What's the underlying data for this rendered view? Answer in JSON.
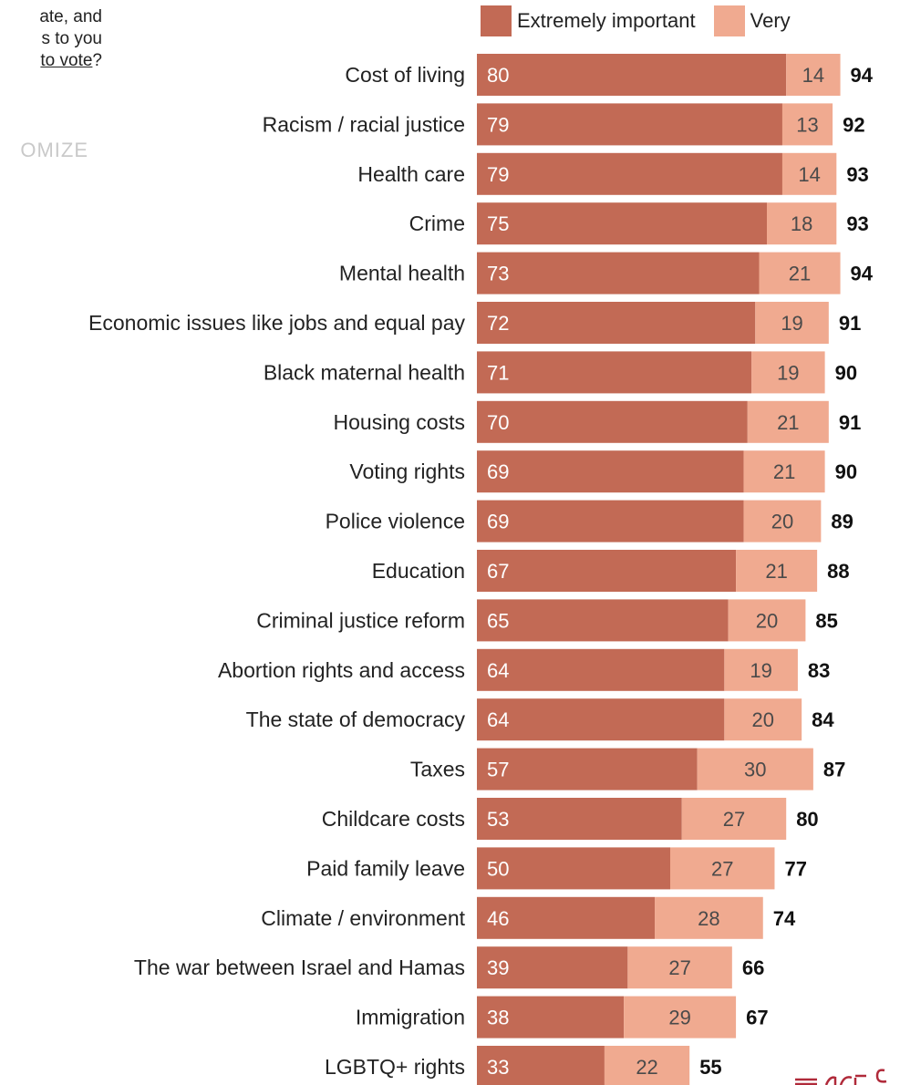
{
  "intro": {
    "line1": "ate, and",
    "line2": "s to you",
    "line3_link": "to vote",
    "line3_end": "?"
  },
  "customize_label": "OMIZE",
  "colors": {
    "extremely": "#c26a55",
    "very": "#f0aa90",
    "label_on_dark": "#ffffff",
    "label_on_light": "#4a4a4a"
  },
  "legend": {
    "extremely_label": "Extremely important",
    "very_label": "Very"
  },
  "chart_data": {
    "type": "bar",
    "orientation": "horizontal",
    "stacked": true,
    "categories": [
      "Cost of living",
      "Racism / racial justice",
      "Health care",
      "Crime",
      "Mental health",
      "Economic issues like jobs and equal pay",
      "Black maternal health",
      "Housing costs",
      "Voting rights",
      "Police violence",
      "Education",
      "Criminal justice reform",
      "Abortion rights and access",
      "The state of democracy",
      "Taxes",
      "Childcare costs",
      "Paid family leave",
      "Climate / environment",
      "The war between Israel and Hamas",
      "Immigration",
      "LGBTQ+ rights"
    ],
    "series": [
      {
        "name": "Extremely important",
        "values": [
          80,
          79,
          79,
          75,
          73,
          72,
          71,
          70,
          69,
          69,
          67,
          65,
          64,
          64,
          57,
          53,
          50,
          46,
          39,
          38,
          33
        ]
      },
      {
        "name": "Very",
        "values": [
          14,
          13,
          14,
          18,
          21,
          19,
          19,
          21,
          21,
          20,
          21,
          20,
          19,
          20,
          30,
          27,
          27,
          28,
          27,
          29,
          22
        ]
      }
    ],
    "totals": [
      94,
      92,
      93,
      93,
      94,
      91,
      90,
      91,
      90,
      89,
      88,
      85,
      83,
      84,
      87,
      80,
      77,
      74,
      66,
      67,
      55
    ],
    "xlim": [
      0,
      100
    ],
    "legend_position": "top",
    "grid": false
  }
}
